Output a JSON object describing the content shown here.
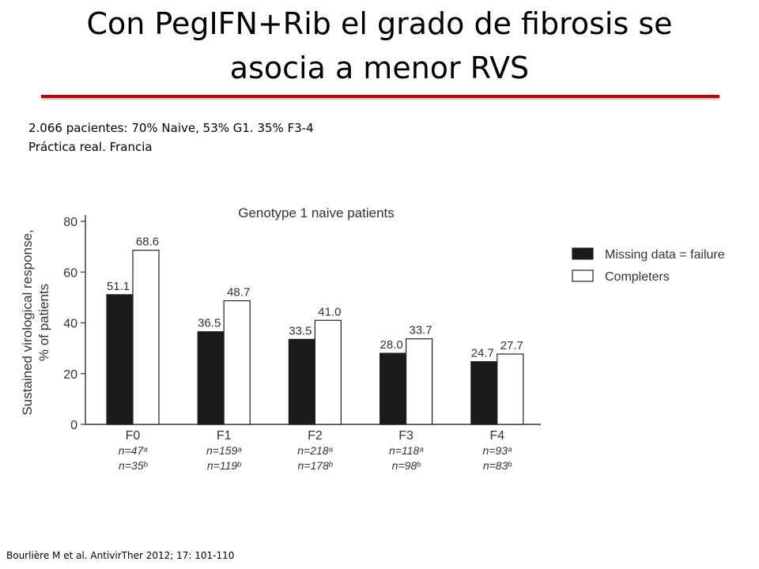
{
  "slide": {
    "title_line1": "Con PegIFN+Rib el grado de fibrosis se",
    "title_line2": "asocia a menor RVS",
    "subtitle_line1": "2.066 pacientes:  70% Naive, 53% G1. 35% F3-4",
    "subtitle_line2": "Práctica real. Francia",
    "citation": "Bourlière M et al. AntivirTher 2012; 17: 101-110",
    "accent_color": "#c00000"
  },
  "chart_data": {
    "type": "bar",
    "title": "Genotype 1 naive patients",
    "ylabel_line1": "Sustained virological response,",
    "ylabel_line2": "% of patients",
    "ylim": [
      0,
      80
    ],
    "yticks": [
      0,
      20,
      40,
      60,
      80
    ],
    "categories": [
      "F0",
      "F1",
      "F2",
      "F3",
      "F4"
    ],
    "n_a": [
      "n=47ᵃ",
      "n=159ᵃ",
      "n=218ᵃ",
      "n=118ᵃ",
      "n=93ᵃ"
    ],
    "n_b": [
      "n=35ᵇ",
      "n=119ᵇ",
      "n=178ᵇ",
      "n=98ᵇ",
      "n=83ᵇ"
    ],
    "legend_position": "right",
    "series": [
      {
        "name": "Missing data = failure",
        "color": "#1a1a1a",
        "values": [
          51.1,
          36.5,
          33.5,
          28.0,
          24.7
        ],
        "labels": [
          "51.1",
          "36.5",
          "33.5",
          "28.0",
          "24.7"
        ]
      },
      {
        "name": "Completers",
        "color": "#ffffff",
        "values": [
          68.6,
          48.7,
          41.0,
          33.7,
          27.7
        ],
        "labels": [
          "68.6",
          "48.7",
          "41.0",
          "33.7",
          "27.7"
        ]
      }
    ]
  }
}
